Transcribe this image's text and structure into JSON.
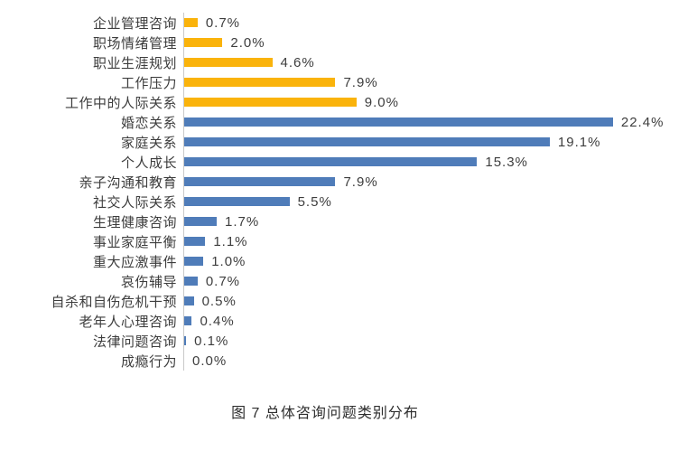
{
  "chart_data": {
    "type": "bar",
    "orientation": "horizontal",
    "title": "图 7 总体咨询问题类别分布",
    "xlabel": "",
    "ylabel": "",
    "grid": false,
    "legend": "none",
    "data_labels": true,
    "xlim": [
      0,
      26.3
    ],
    "categories": [
      "企业管理咨询",
      "职场情绪管理",
      "职业生涯规划",
      "工作压力",
      "工作中的人际关系",
      "婚恋关系",
      "家庭关系",
      "个人成长",
      "亲子沟通和教育",
      "社交人际关系",
      "生理健康咨询",
      "事业家庭平衡",
      "重大应激事件",
      "哀伤辅导",
      "自杀和自伤危机干预",
      "老年人心理咨询",
      "法律问题咨询",
      "成瘾行为"
    ],
    "values": [
      0.7,
      2.0,
      4.6,
      7.9,
      9.0,
      22.4,
      19.1,
      15.3,
      7.9,
      5.5,
      1.7,
      1.1,
      1.0,
      0.7,
      0.5,
      0.4,
      0.1,
      0.0
    ],
    "value_labels": [
      "0.7%",
      "2.0%",
      "4.6%",
      "7.9%",
      "9.0%",
      "22.4%",
      "19.1%",
      "15.3%",
      "7.9%",
      "5.5%",
      "1.7%",
      "1.1%",
      "1.0%",
      "0.7%",
      "0.5%",
      "0.4%",
      "0.1%",
      "0.0%"
    ],
    "bar_color_keys": [
      "gold",
      "gold",
      "gold",
      "gold",
      "gold",
      "blue",
      "blue",
      "blue",
      "blue",
      "blue",
      "blue",
      "blue",
      "blue",
      "blue",
      "blue",
      "blue",
      "blue",
      "blue"
    ],
    "colors": {
      "gold": "#FAB30B",
      "blue": "#4F7CB9",
      "axis_line": "#C9C9C9",
      "text": "#3D3D3D"
    }
  }
}
